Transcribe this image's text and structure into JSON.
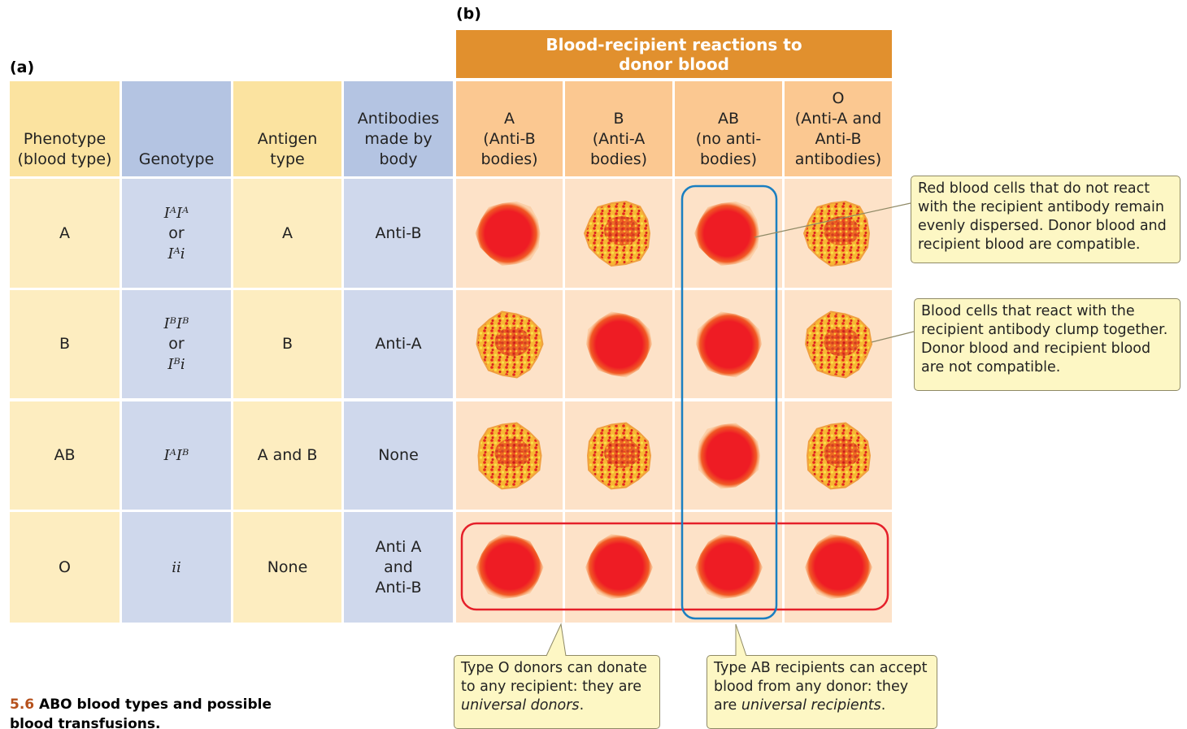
{
  "panel_a": {
    "label": "(a)",
    "headers": [
      [
        "Phenotype",
        "(blood type)"
      ],
      [
        "Genotype"
      ],
      [
        "Antigen",
        "type"
      ],
      [
        "Antibodies",
        "made by",
        "body"
      ]
    ],
    "rows": [
      {
        "phenotype": "A",
        "genotype": [
          "IᴬIᴬ",
          "or",
          "Iᴬi"
        ],
        "antigen": "A",
        "antibodies": [
          "Anti-B"
        ]
      },
      {
        "phenotype": "B",
        "genotype": [
          "IᴮIᴮ",
          "or",
          "Iᴮi"
        ],
        "antigen": "B",
        "antibodies": [
          "Anti-A"
        ]
      },
      {
        "phenotype": "AB",
        "genotype": [
          "IᴬIᴮ"
        ],
        "antigen": "A and B",
        "antibodies": [
          "None"
        ]
      },
      {
        "phenotype": "O",
        "genotype": [
          "ii"
        ],
        "antigen": "None",
        "antibodies": [
          "Anti A",
          "and",
          "Anti-B"
        ]
      }
    ]
  },
  "panel_b": {
    "label": "(b)",
    "title": [
      "Blood-recipient reactions to",
      "donor blood"
    ],
    "headers": [
      [
        "A",
        "(Anti-B",
        "bodies)"
      ],
      [
        "B",
        "(Anti-A",
        "bodies)"
      ],
      [
        "AB",
        "(no anti-",
        "bodies)"
      ],
      [
        "O",
        "(Anti-A and",
        "Anti-B",
        "antibodies)"
      ]
    ],
    "clumps": [
      [
        false,
        true,
        false,
        true
      ],
      [
        true,
        false,
        false,
        true
      ],
      [
        true,
        true,
        false,
        true
      ],
      [
        false,
        false,
        false,
        false
      ]
    ]
  },
  "callouts": [
    {
      "text": "Red blood cells that do not react with the recipient antibody remain evenly dispersed. Donor blood and recipient blood are compatible."
    },
    {
      "text": "Blood cells that react with the recipient antibody clump together. Donor blood and recipient blood are not compatible."
    },
    {
      "text": "Type O donors can donate to any recipient: they are",
      "emphasis": "universal donors",
      "end": "."
    },
    {
      "text": "Type AB recipients can accept blood from any donor: they are",
      "emphasis": "universal recipients",
      "end": "."
    }
  ],
  "caption": {
    "number": "5.6",
    "title": "ABO blood types and possible blood transfusions."
  }
}
